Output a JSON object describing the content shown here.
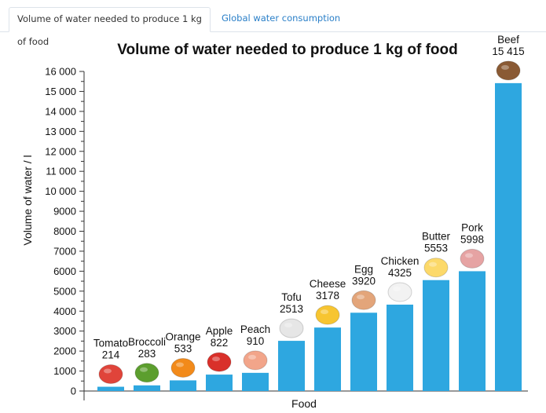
{
  "tabs": [
    {
      "label": "Volume of water needed to produce 1 kg of food",
      "active": true
    },
    {
      "label": "Global water consumption",
      "active": false
    }
  ],
  "chart_data": {
    "type": "bar",
    "title": "Volume of water needed to produce 1 kg of food",
    "xlabel": "Food",
    "ylabel": "Volume of water / l",
    "ylim": [
      0,
      16000
    ],
    "yticks": [
      "0",
      "1000",
      "2000",
      "3000",
      "4000",
      "5000",
      "6000",
      "7000",
      "8000",
      "9000",
      "10 000",
      "11 000",
      "12 000",
      "13 000",
      "14 000",
      "15 000",
      "16 000"
    ],
    "grid": false,
    "bar_color": "#2ea7e0",
    "categories": [
      "Tomato",
      "Broccoli",
      "Orange",
      "Apple",
      "Peach",
      "Tofu",
      "Cheese",
      "Egg",
      "Chicken",
      "Butter",
      "Pork",
      "Beef"
    ],
    "values": [
      214,
      283,
      533,
      822,
      910,
      2513,
      3178,
      3920,
      4325,
      5553,
      5998,
      15415
    ],
    "value_labels": [
      "214",
      "283",
      "533",
      "822",
      "910",
      "2513",
      "3178",
      "3920",
      "4325",
      "5553",
      "5998",
      "15 415"
    ],
    "icons": [
      "tomato-icon",
      "broccoli-icon",
      "orange-icon",
      "apple-icon",
      "peach-icon",
      "tofu-icon",
      "cheese-icon",
      "egg-icon",
      "chicken-icon",
      "butter-icon",
      "pig-icon",
      "cow-icon"
    ],
    "icon_colors": [
      "#e0443a",
      "#5c9e2e",
      "#f28a1a",
      "#d9302a",
      "#f2a58a",
      "#e6e6e6",
      "#f7c531",
      "#e3a57a",
      "#f2f2f2",
      "#fcd96a",
      "#e6a3a3",
      "#8a5a34"
    ]
  }
}
